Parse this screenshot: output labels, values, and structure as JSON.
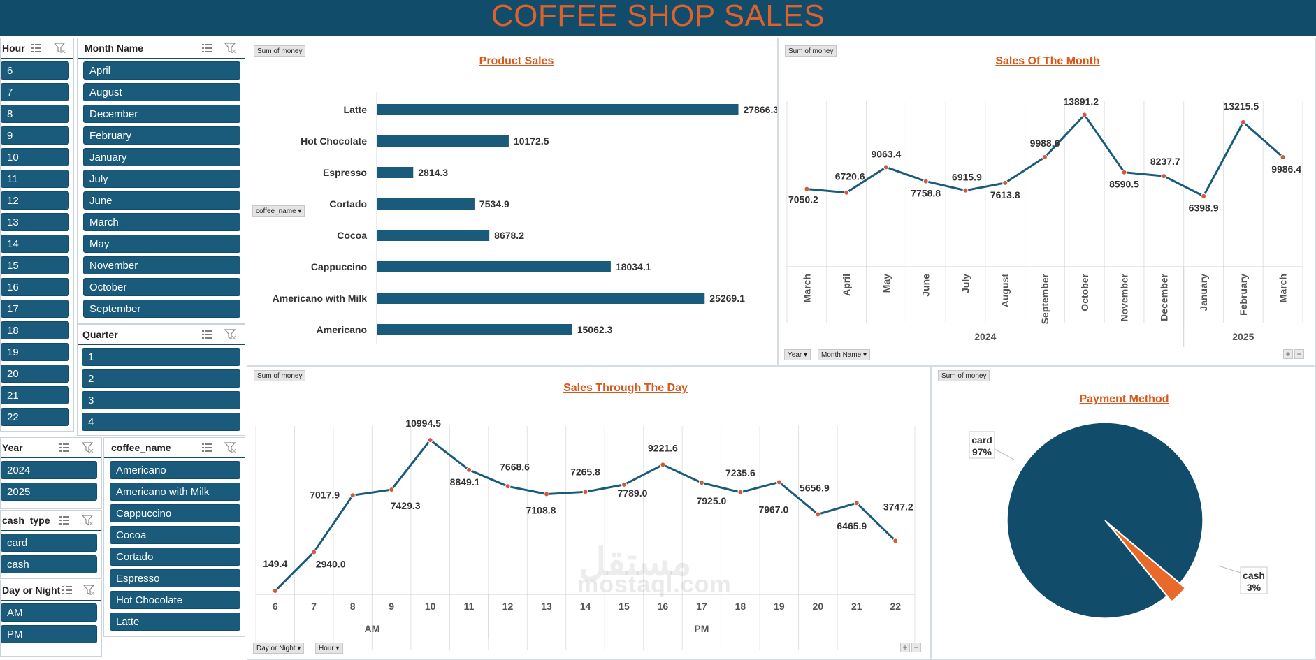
{
  "title": "COFFEE SHOP SALES",
  "slicers": {
    "hour": {
      "title": "Hour",
      "items": [
        "6",
        "7",
        "8",
        "9",
        "10",
        "11",
        "12",
        "13",
        "14",
        "15",
        "16",
        "17",
        "18",
        "19",
        "20",
        "21",
        "22"
      ]
    },
    "month": {
      "title": "Month Name",
      "items": [
        "April",
        "August",
        "December",
        "February",
        "January",
        "July",
        "June",
        "March",
        "May",
        "November",
        "October",
        "September"
      ]
    },
    "quarter": {
      "title": "Quarter",
      "items": [
        "1",
        "2",
        "3",
        "4"
      ]
    },
    "year": {
      "title": "Year",
      "items": [
        "2024",
        "2025"
      ]
    },
    "cash_type": {
      "title": "cash_type",
      "items": [
        "card",
        "cash"
      ]
    },
    "day_night": {
      "title": "Day or Night",
      "items": [
        "AM",
        "PM"
      ]
    },
    "coffee": {
      "title": "coffee_name",
      "items": [
        "Americano",
        "Americano with Milk",
        "Cappuccino",
        "Cocoa",
        "Cortado",
        "Espresso",
        "Hot Chocolate",
        "Latte"
      ]
    }
  },
  "buttons": {
    "sum_of_money": "Sum of money",
    "coffee_name": "coffee_name",
    "year": "Year",
    "month_name": "Month Name",
    "day_or_night": "Day or Night",
    "hour": "Hour",
    "plus": "+",
    "minus": "−"
  },
  "watermark": {
    "latin": "mostaql.com",
    "arabic": "مستقل"
  },
  "chart_data": [
    {
      "type": "bar",
      "title": "Product Sales",
      "orientation": "horizontal",
      "categories": [
        "Latte",
        "Hot Chocolate",
        "Espresso",
        "Cortado",
        "Cocoa",
        "Cappuccino",
        "Americano with Milk",
        "Americano"
      ],
      "values": [
        27866.3,
        10172.5,
        2814.3,
        7534.9,
        8678.2,
        18034.1,
        25269.1,
        15062.3
      ],
      "labels": [
        "27866.3",
        "10172.5",
        "2814.3",
        "7534.9",
        "8678.2",
        "18034.1",
        "25269.1",
        "15062.3"
      ],
      "xlim": [
        0,
        28000
      ],
      "color": "#1a5b7c"
    },
    {
      "type": "line",
      "title": "Sales Of The Month",
      "categories": [
        "March",
        "April",
        "May",
        "June",
        "July",
        "August",
        "September",
        "October",
        "November",
        "December",
        "January",
        "February",
        "March"
      ],
      "values": [
        7050.2,
        6720.6,
        9063.4,
        7758.8,
        6915.9,
        7613.8,
        9988.6,
        13891.2,
        8590.5,
        8237.7,
        6398.9,
        13215.5,
        9986.4
      ],
      "labels": [
        "7050.2",
        "6720.6",
        "9063.4",
        "7758.8",
        "6915.9",
        "7613.8",
        "9988.6",
        "13891.2",
        "8590.5",
        "8237.7",
        "6398.9",
        "13215.5",
        "9986.4"
      ],
      "groups": [
        {
          "name": "2024",
          "count": 10
        },
        {
          "name": "2025",
          "count": 3
        }
      ],
      "ylim": [
        0,
        14500
      ],
      "color": "#1a5b7c"
    },
    {
      "type": "line",
      "title": "Sales Through The Day",
      "categories": [
        "6",
        "7",
        "8",
        "9",
        "10",
        "11",
        "12",
        "13",
        "14",
        "15",
        "16",
        "17",
        "18",
        "19",
        "20",
        "21",
        "22"
      ],
      "values": [
        149.4,
        2940.0,
        7017.9,
        7429.3,
        10994.5,
        8849.1,
        7668.6,
        7108.8,
        7265.8,
        7789.0,
        9221.6,
        7925.0,
        7235.6,
        7967.0,
        5656.9,
        6465.9,
        3747.2
      ],
      "labels": [
        "149.4",
        "2940.0",
        "7017.9",
        "7429.3",
        "10994.5",
        "8849.1",
        "7668.6",
        "7108.8",
        "7265.8",
        "7789.0",
        "9221.6",
        "7925.0",
        "7235.6",
        "7967.0",
        "5656.9",
        "6465.9",
        "3747.2"
      ],
      "groups": [
        {
          "name": "AM",
          "count": 6
        },
        {
          "name": "PM",
          "count": 11
        }
      ],
      "ylim": [
        0,
        11500
      ],
      "color": "#1a5b7c"
    },
    {
      "type": "pie",
      "title": "Payment Method",
      "slices": [
        {
          "name": "card",
          "value": 97,
          "label": "97%",
          "color": "#124c6b"
        },
        {
          "name": "cash",
          "value": 3,
          "label": "3%",
          "color": "#e8692a"
        }
      ]
    }
  ]
}
